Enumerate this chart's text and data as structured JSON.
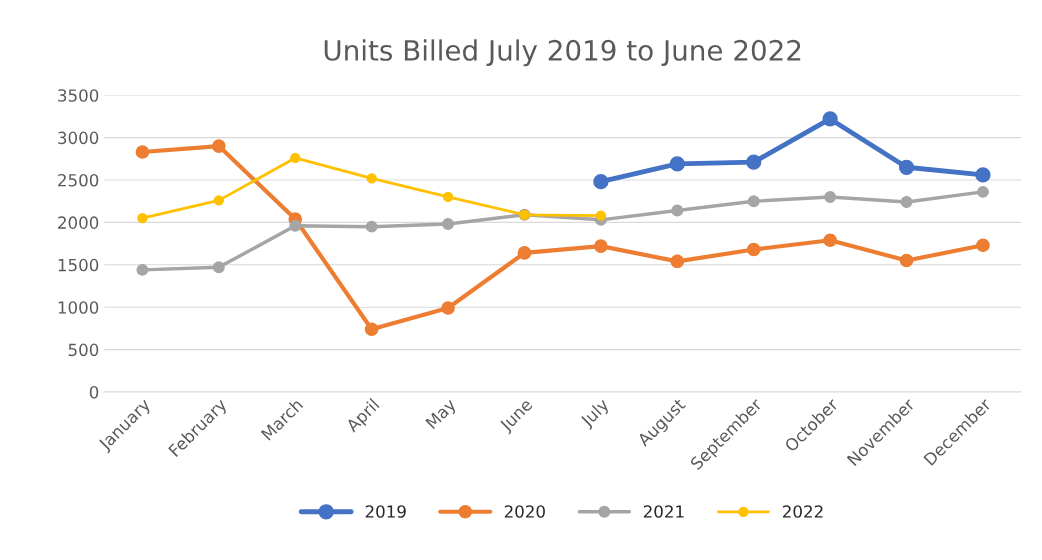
{
  "chart_data": {
    "type": "line",
    "title": "Units Billed July 2019 to June 2022",
    "categories": [
      "January",
      "February",
      "March",
      "April",
      "May",
      "June",
      "July",
      "August",
      "September",
      "October",
      "November",
      "December"
    ],
    "series": [
      {
        "name": "2019",
        "color": "#4472c4",
        "values": [
          null,
          null,
          null,
          null,
          null,
          null,
          2480,
          2690,
          2710,
          3220,
          2650,
          2560
        ]
      },
      {
        "name": "2020",
        "color": "#ed7d31",
        "values": [
          2830,
          2900,
          2040,
          740,
          990,
          1640,
          1720,
          1540,
          1680,
          1790,
          1550,
          1730
        ]
      },
      {
        "name": "2021",
        "color": "#a5a5a5",
        "values": [
          1440,
          1470,
          1960,
          1950,
          1980,
          2090,
          2030,
          2140,
          2250,
          2300,
          2240,
          2360
        ]
      },
      {
        "name": "2022",
        "color": "#ffc000",
        "values": [
          2050,
          2260,
          2760,
          2520,
          2300,
          2090,
          2080,
          null,
          null,
          null,
          null,
          null
        ]
      }
    ],
    "ylim": [
      0,
      3500
    ],
    "yticks": [
      0,
      500,
      1000,
      1500,
      2000,
      2500,
      3000,
      3500
    ],
    "grid": "y",
    "legend": "bottom",
    "marker": "circle",
    "line_style": "solid"
  }
}
